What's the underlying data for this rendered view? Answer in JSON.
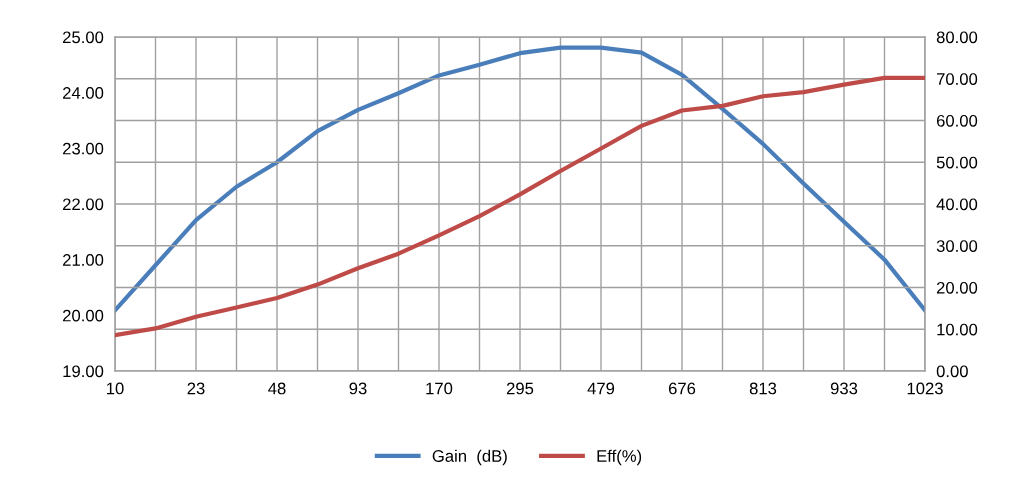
{
  "chart_data": {
    "type": "line",
    "categories": [
      "10",
      null,
      "23",
      null,
      "48",
      null,
      "93",
      null,
      "170",
      null,
      "295",
      null,
      "479",
      null,
      "676",
      null,
      "813",
      null,
      "933",
      null,
      "1023"
    ],
    "series": [
      {
        "name": "Gain  (dB)",
        "color": "#4a7ebb",
        "values": [
          20.09,
          20.9,
          21.71,
          22.31,
          22.75,
          23.31,
          23.69,
          23.99,
          24.31,
          24.5,
          24.71,
          24.81,
          24.81,
          24.72,
          24.32,
          23.71,
          23.08,
          22.37,
          21.68,
          21.0,
          20.09
        ]
      },
      {
        "name": "Eff(%)",
        "color": "#be4b48",
        "axis": "y2",
        "values": [
          8.6,
          10.2,
          13.0,
          15.2,
          17.5,
          20.7,
          24.6,
          28.1,
          32.5,
          37.1,
          42.3,
          47.9,
          53.3,
          58.7,
          62.4,
          63.5,
          65.8,
          66.8,
          68.6,
          70.2,
          70.2
        ]
      }
    ],
    "ylim": [
      19,
      25
    ],
    "yticks": [
      {
        "value": 19,
        "label": "19.00"
      },
      {
        "value": 20,
        "label": "20.00"
      },
      {
        "value": 21,
        "label": "21.00"
      },
      {
        "value": 22,
        "label": "22.00"
      },
      {
        "value": 23,
        "label": "23.00"
      },
      {
        "value": 24,
        "label": "24.00"
      },
      {
        "value": 25,
        "label": "25.00"
      }
    ],
    "y2lim": [
      0,
      80
    ],
    "y2ticks": [
      {
        "value": 0,
        "label": "0.00"
      },
      {
        "value": 10,
        "label": "10.00"
      },
      {
        "value": 20,
        "label": "20.00"
      },
      {
        "value": 30,
        "label": "30.00"
      },
      {
        "value": 40,
        "label": "40.00"
      },
      {
        "value": 50,
        "label": "50.00"
      },
      {
        "value": 60,
        "label": "60.00"
      },
      {
        "value": 70,
        "label": "70.00"
      },
      {
        "value": 80,
        "label": "80.00"
      }
    ],
    "grid": true,
    "legend": "bottom",
    "marker": "none",
    "line_style": "solid"
  }
}
